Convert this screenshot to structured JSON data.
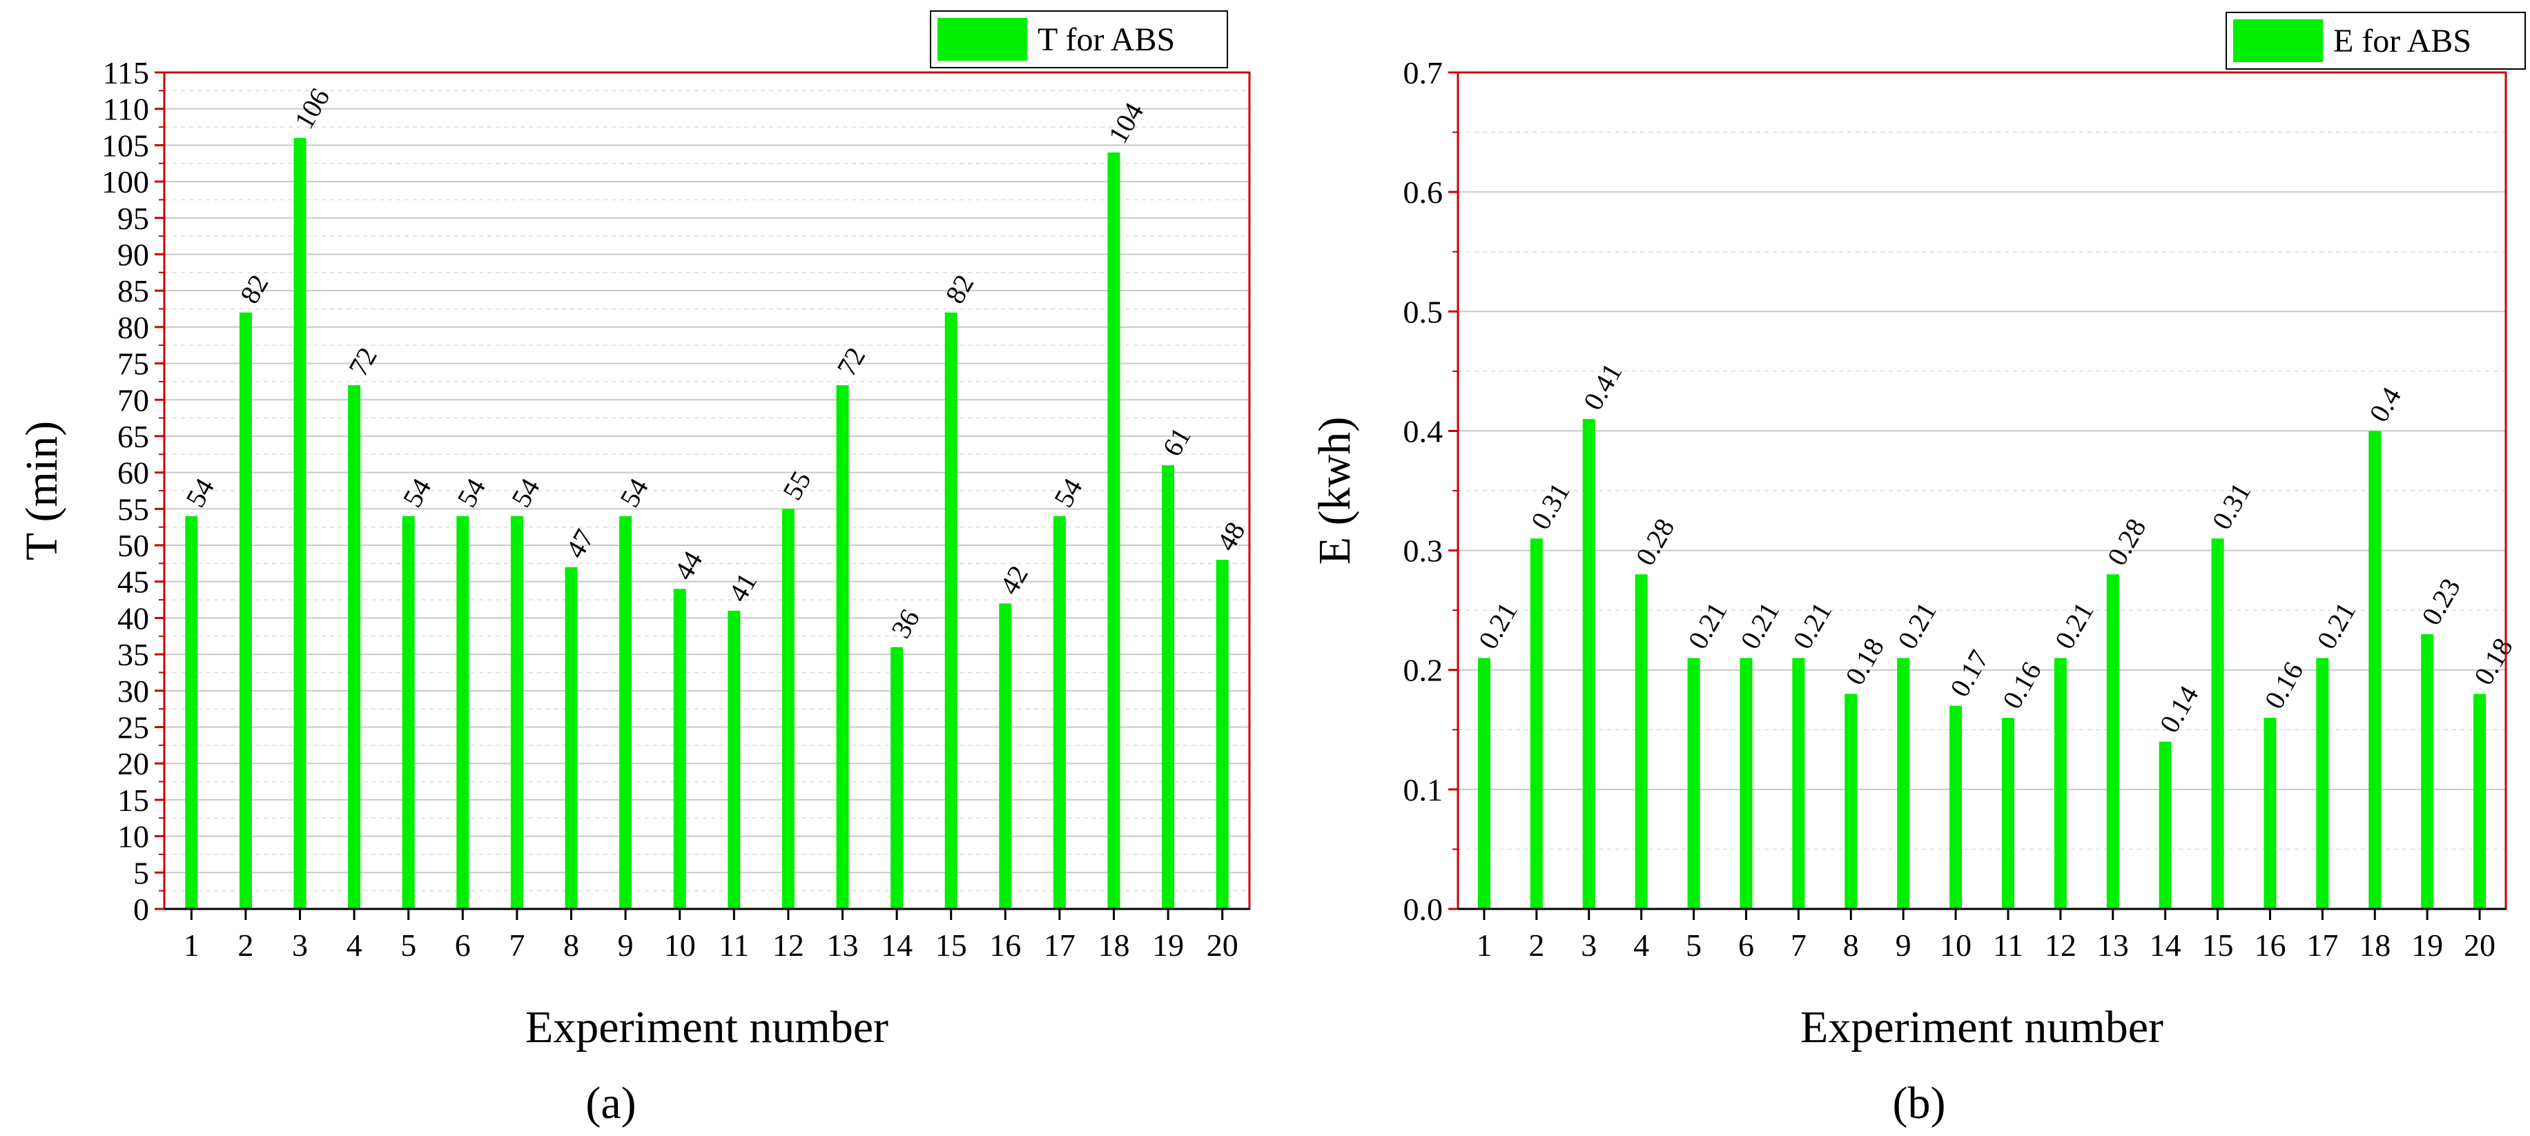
{
  "colors": {
    "bar": "#00ee00",
    "frame": "#cc0000",
    "grid_major": "#c8c8c8",
    "grid_minor": "#dcdcdc"
  },
  "chart_data": [
    {
      "type": "bar",
      "panel": "(a)",
      "title": "",
      "xlabel": "Experiment number",
      "ylabel": "T (min)",
      "legend": "T for ABS",
      "legend_position": "top-right",
      "ylim": [
        0,
        115
      ],
      "ytick_step": 5,
      "ytick_decimals": 0,
      "categories": [
        "1",
        "2",
        "3",
        "4",
        "5",
        "6",
        "7",
        "8",
        "9",
        "10",
        "11",
        "12",
        "13",
        "14",
        "15",
        "16",
        "17",
        "18",
        "19",
        "20"
      ],
      "values": [
        54,
        82,
        106,
        72,
        54,
        54,
        54,
        47,
        54,
        44,
        41,
        55,
        72,
        36,
        82,
        42,
        54,
        104,
        61,
        48
      ],
      "labels": [
        "54",
        "82",
        "106",
        "72",
        "54",
        "54",
        "54",
        "47",
        "54",
        "44",
        "41",
        "55",
        "72",
        "36",
        "82",
        "42",
        "54",
        "104",
        "61",
        "48"
      ]
    },
    {
      "type": "bar",
      "panel": "(b)",
      "title": "",
      "xlabel": "Experiment number",
      "ylabel": "E (kwh)",
      "legend": "E for ABS",
      "legend_position": "top-right",
      "ylim": [
        0,
        0.7
      ],
      "ytick_step": 0.1,
      "ytick_decimals": 1,
      "categories": [
        "1",
        "2",
        "3",
        "4",
        "5",
        "6",
        "7",
        "8",
        "9",
        "10",
        "11",
        "12",
        "13",
        "14",
        "15",
        "16",
        "17",
        "18",
        "19",
        "20"
      ],
      "values": [
        0.21,
        0.31,
        0.41,
        0.28,
        0.21,
        0.21,
        0.21,
        0.18,
        0.21,
        0.17,
        0.16,
        0.21,
        0.28,
        0.14,
        0.31,
        0.16,
        0.21,
        0.4,
        0.23,
        0.18
      ],
      "labels": [
        "0.21",
        "0.31",
        "0.41",
        "0.28",
        "0.21",
        "0.21",
        "0.21",
        "0.18",
        "0.21",
        "0.17",
        "0.16",
        "0.21",
        "0.28",
        "0.14",
        "0.31",
        "0.16",
        "0.21",
        "0.4",
        "0.23",
        "0.18"
      ]
    }
  ]
}
